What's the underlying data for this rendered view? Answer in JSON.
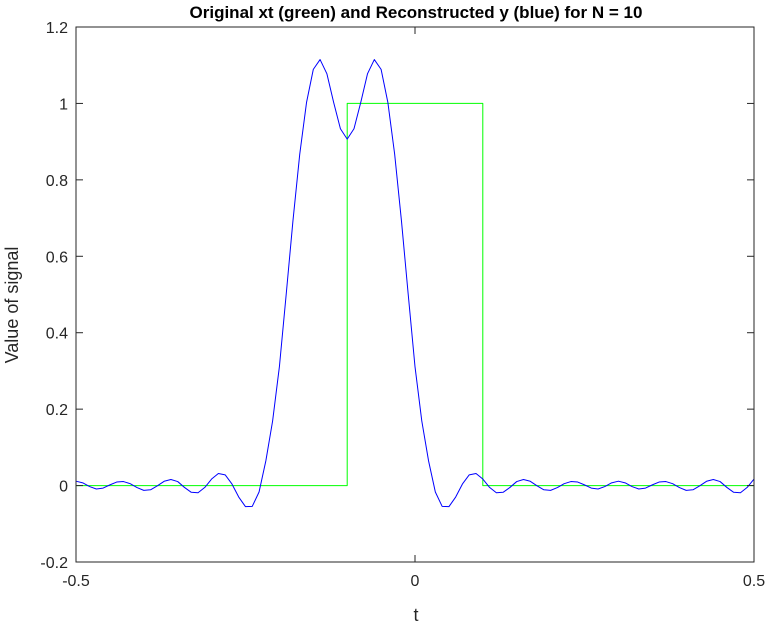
{
  "chart_data": {
    "type": "line",
    "title": "Original xt (green) and Reconstructed y (blue) for N = 10",
    "xlabel": "t",
    "ylabel": "Value of signal",
    "xlim": [
      -0.5,
      0.5
    ],
    "ylim": [
      -0.2,
      1.2
    ],
    "xticks": [
      -0.5,
      0,
      0.5
    ],
    "xtick_labels": [
      "-0.5",
      "0",
      "0.5"
    ],
    "yticks": [
      -0.2,
      0,
      0.2,
      0.4,
      0.6,
      0.8,
      1,
      1.2
    ],
    "ytick_labels": [
      "-0.2",
      "0",
      "0.2",
      "0.4",
      "0.6",
      "0.8",
      "1",
      "1.2"
    ],
    "grid": false,
    "box": true,
    "series": [
      {
        "color": "#00ff00",
        "x": [
          -0.5,
          -0.1,
          -0.1,
          0.1,
          0.1,
          0.5
        ],
        "y": [
          0,
          0,
          1,
          1,
          0,
          0
        ]
      },
      {
        "color": "#0000ff",
        "x": [
          -0.5,
          -0.49,
          -0.48,
          -0.47,
          -0.46,
          -0.45,
          -0.44,
          -0.43,
          -0.42,
          -0.41,
          -0.4,
          -0.39,
          -0.38,
          -0.37,
          -0.36,
          -0.35,
          -0.34,
          -0.33,
          -0.32,
          -0.31,
          -0.3,
          -0.29,
          -0.28,
          -0.27,
          -0.26,
          -0.25,
          -0.24,
          -0.23,
          -0.22,
          -0.21,
          -0.2,
          -0.19,
          -0.18,
          -0.17,
          -0.16,
          -0.15,
          -0.14,
          -0.13,
          -0.12,
          -0.11,
          -0.1,
          -0.09,
          -0.08,
          -0.07,
          -0.06,
          -0.05,
          -0.04,
          -0.03,
          -0.02,
          -0.01,
          0,
          0.01,
          0.02,
          0.03,
          0.04,
          0.05,
          0.06,
          0.07,
          0.08,
          0.09,
          0.1,
          0.11,
          0.12,
          0.13,
          0.14,
          0.15,
          0.16,
          0.17,
          0.18,
          0.19,
          0.2,
          0.21,
          0.22,
          0.23,
          0.24,
          0.25,
          0.26,
          0.27,
          0.28,
          0.29,
          0.3,
          0.31,
          0.32,
          0.33,
          0.34,
          0.35,
          0.36,
          0.37,
          0.38,
          0.39,
          0.4,
          0.41,
          0.42,
          0.43,
          0.44,
          0.45,
          0.46,
          0.47,
          0.48,
          0.49,
          0.5
        ],
        "y": [
          0.0115,
          0.0071,
          -0.0026,
          -0.0089,
          -0.0066,
          0.0018,
          0.0092,
          0.0105,
          0.0049,
          -0.0052,
          -0.0126,
          -0.0111,
          -0.0006,
          0.0112,
          0.0158,
          0.0105,
          -0.0049,
          -0.0176,
          -0.0189,
          -0.0048,
          0.0171,
          0.0317,
          0.0281,
          0.0042,
          -0.03,
          -0.0552,
          -0.0543,
          -0.0168,
          0.0646,
          0.1692,
          0.3112,
          0.5,
          0.6931,
          0.8671,
          1.0024,
          1.0891,
          1.1148,
          1.0779,
          1.0027,
          0.9337,
          0.9066,
          0.9337,
          1.0027,
          1.0779,
          1.1148,
          1.0891,
          1.0024,
          0.8671,
          0.6931,
          0.5,
          0.3112,
          0.1692,
          0.0646,
          -0.0168,
          -0.0543,
          -0.0552,
          -0.03,
          0.0042,
          0.0281,
          0.0317,
          0.0171,
          -0.0048,
          -0.0189,
          -0.0176,
          -0.0049,
          0.0105,
          0.0158,
          0.0112,
          -0.0006,
          -0.0111,
          -0.0126,
          -0.0052,
          0.0049,
          0.0105,
          0.0092,
          0.0018,
          -0.0066,
          -0.0089,
          -0.0026,
          0.0071,
          0.0115,
          0.0071,
          -0.0026,
          -0.0089,
          -0.0066,
          0.0018,
          0.0092,
          0.0105,
          0.0049,
          -0.0052,
          -0.0126,
          -0.0111,
          -0.0006,
          0.0112,
          0.0158,
          0.0105,
          -0.0049,
          -0.0176,
          -0.0189,
          -0.0048,
          0.0171
        ]
      }
    ]
  }
}
